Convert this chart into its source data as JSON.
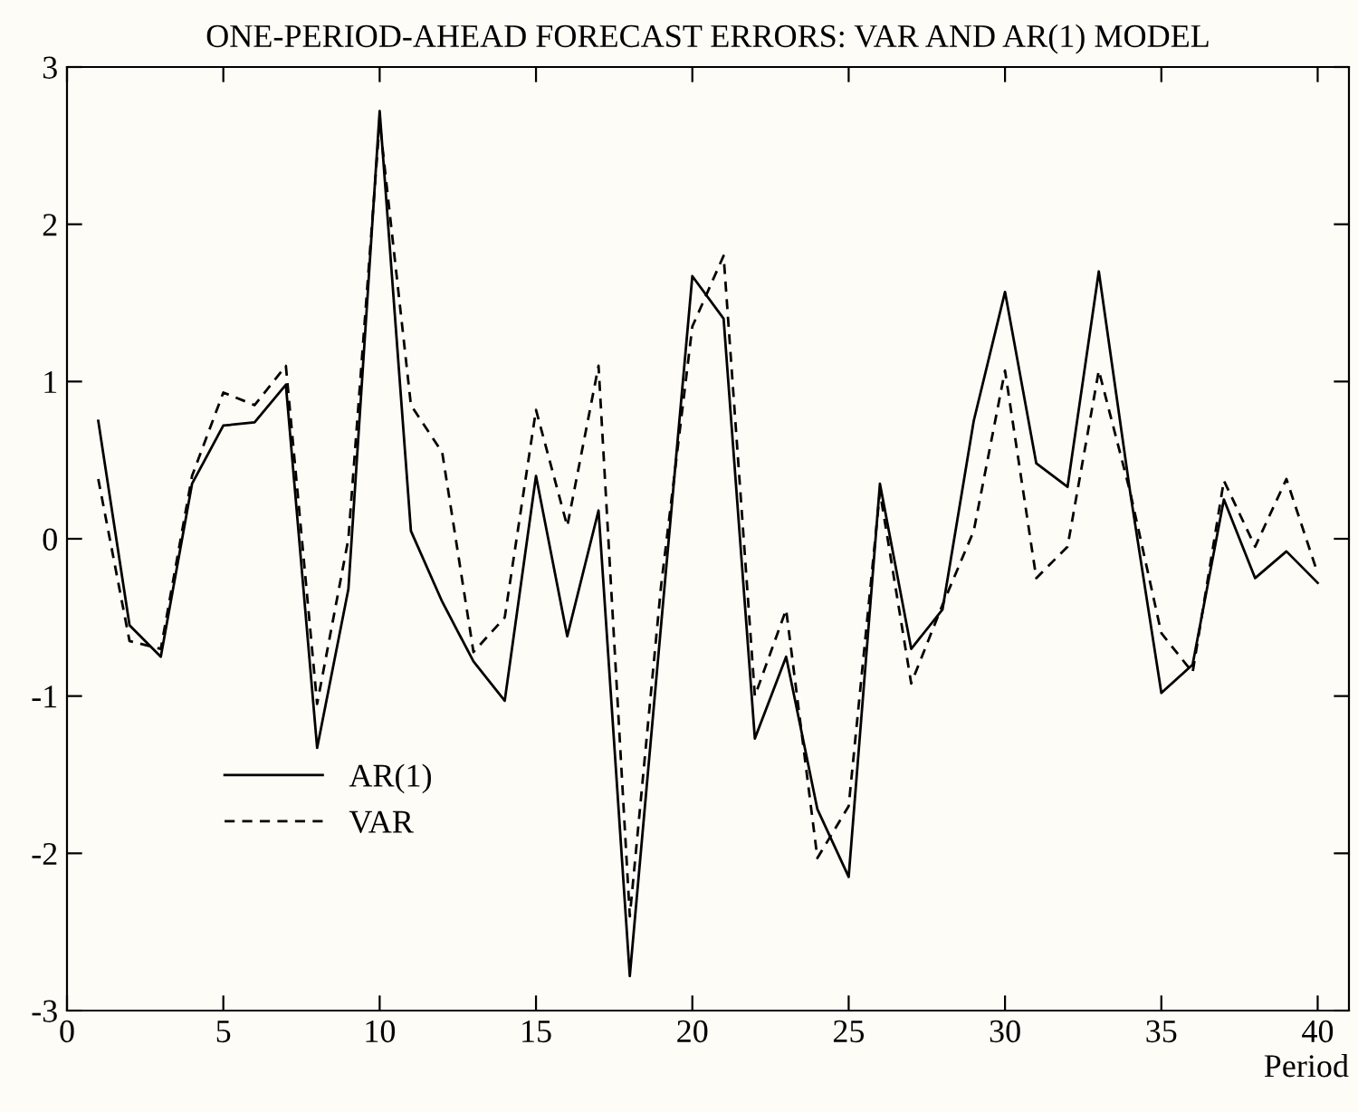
{
  "chart_data": {
    "type": "line",
    "title": "ONE-PERIOD-AHEAD FORECAST ERRORS: VAR AND AR(1) MODEL",
    "xlabel": "Period",
    "x": [
      1,
      2,
      3,
      4,
      5,
      6,
      7,
      8,
      9,
      10,
      11,
      12,
      13,
      14,
      15,
      16,
      17,
      18,
      19,
      20,
      21,
      22,
      23,
      24,
      25,
      26,
      27,
      28,
      29,
      30,
      31,
      32,
      33,
      34,
      35,
      36,
      37,
      38,
      39,
      40
    ],
    "series": [
      {
        "name": "AR(1)",
        "color": "#000000",
        "line_style": "solid",
        "values": [
          0.75,
          -0.55,
          -0.75,
          0.35,
          0.72,
          0.74,
          0.98,
          -1.33,
          -0.32,
          2.72,
          0.05,
          -0.4,
          -0.78,
          -1.03,
          0.4,
          -0.62,
          0.18,
          -2.78,
          -0.55,
          1.67,
          1.4,
          -1.27,
          -0.75,
          -1.72,
          -2.15,
          0.35,
          -0.7,
          -0.45,
          0.75,
          1.57,
          0.48,
          0.33,
          1.7,
          0.3,
          -0.98,
          -0.8,
          0.25,
          -0.25,
          -0.08,
          -0.28
        ]
      },
      {
        "name": "VAR",
        "color": "#000000",
        "line_style": "dashed",
        "values": [
          0.38,
          -0.65,
          -0.7,
          0.4,
          0.93,
          0.85,
          1.1,
          -1.05,
          0.0,
          2.65,
          0.85,
          0.55,
          -0.72,
          -0.5,
          0.82,
          0.08,
          1.1,
          -2.4,
          -0.3,
          1.35,
          1.8,
          -1.0,
          -0.45,
          -2.03,
          -1.7,
          0.3,
          -0.92,
          -0.42,
          0.05,
          1.07,
          -0.25,
          -0.05,
          1.07,
          0.3,
          -0.6,
          -0.85,
          0.37,
          -0.05,
          0.38,
          -0.22
        ]
      }
    ],
    "xlim": [
      0,
      41
    ],
    "xticks": [
      0,
      5,
      10,
      15,
      20,
      25,
      30,
      35,
      40
    ],
    "ylim": [
      -3,
      3
    ],
    "yticks": [
      -3,
      -2,
      -1,
      0,
      1,
      2,
      3
    ],
    "grid": false,
    "legend": "bottom left"
  }
}
